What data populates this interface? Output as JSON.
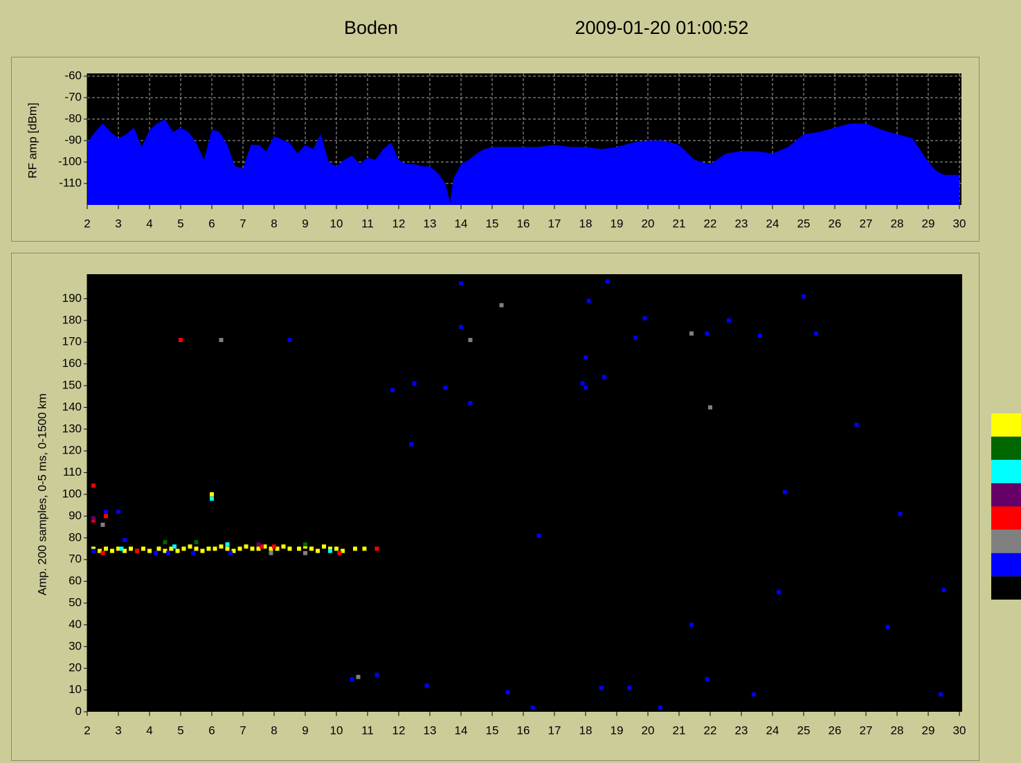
{
  "header": {
    "station": "Boden",
    "timestamp": "2009-01-20  01:00:52"
  },
  "chart_data": [
    {
      "type": "area",
      "ylabel": "RF amp [dBm]",
      "xlim": [
        2,
        30
      ],
      "ylim": [
        -120,
        -60
      ],
      "xticks": [
        2,
        3,
        4,
        5,
        6,
        7,
        8,
        9,
        10,
        11,
        12,
        13,
        14,
        15,
        16,
        17,
        18,
        19,
        20,
        21,
        22,
        23,
        24,
        25,
        26,
        27,
        28,
        29,
        30
      ],
      "yticks": [
        -60,
        -70,
        -80,
        -90,
        -100,
        -110
      ],
      "grid": true,
      "series": [
        {
          "color": "#0000ff",
          "x": [
            2,
            2.25,
            2.5,
            2.75,
            3,
            3.25,
            3.5,
            3.75,
            4,
            4.25,
            4.5,
            4.75,
            5,
            5.25,
            5.5,
            5.75,
            6,
            6.25,
            6.5,
            6.75,
            7,
            7.25,
            7.5,
            7.75,
            8,
            8.5,
            8.75,
            9,
            9.25,
            9.5,
            9.75,
            10,
            10.25,
            10.5,
            10.75,
            11,
            11.25,
            11.5,
            11.75,
            12,
            12.25,
            12.5,
            12.75,
            13,
            13.25,
            13.5,
            13.65,
            13.75,
            14,
            14.25,
            14.5,
            14.75,
            15,
            15.5,
            16,
            16.5,
            17,
            17.5,
            18,
            18.5,
            19,
            19.5,
            20,
            20.5,
            21,
            21.5,
            22,
            22.5,
            23,
            23.5,
            24,
            24.5,
            25,
            25.5,
            26,
            26.5,
            27,
            27.5,
            28,
            28.5,
            29,
            29.25,
            29.5,
            30
          ],
          "values": [
            -91,
            -86,
            -82,
            -86,
            -89,
            -87,
            -84,
            -93,
            -85,
            -82,
            -80,
            -86,
            -84,
            -86,
            -91,
            -99,
            -85,
            -86,
            -92,
            -102,
            -103,
            -92,
            -92,
            -95,
            -88,
            -91,
            -96,
            -92,
            -94,
            -87,
            -100,
            -102,
            -99,
            -97,
            -101,
            -98,
            -99,
            -94,
            -91,
            -99,
            -101,
            -101,
            -102,
            -102,
            -105,
            -110,
            -119,
            -108,
            -101,
            -99,
            -96,
            -94,
            -93,
            -93,
            -93,
            -93,
            -92,
            -93,
            -93,
            -94,
            -93,
            -91,
            -90,
            -90,
            -92,
            -99,
            -101,
            -96,
            -95,
            -95,
            -96,
            -93,
            -87,
            -86,
            -84,
            -82,
            -82,
            -85,
            -87,
            -89,
            -100,
            -104,
            -106,
            -106
          ]
        }
      ]
    },
    {
      "type": "scatter",
      "ylabel": "Amp. 200 samples, 0-5 ms, 0-1500 km",
      "xlim": [
        2,
        30
      ],
      "ylim": [
        0,
        200
      ],
      "xticks": [
        2,
        3,
        4,
        5,
        6,
        7,
        8,
        9,
        10,
        11,
        12,
        13,
        14,
        15,
        16,
        17,
        18,
        19,
        20,
        21,
        22,
        23,
        24,
        25,
        26,
        27,
        28,
        29,
        30
      ],
      "yticks": [
        0,
        10,
        20,
        30,
        40,
        50,
        60,
        70,
        80,
        90,
        100,
        110,
        120,
        130,
        140,
        150,
        160,
        170,
        180,
        190
      ],
      "colorbar": [
        "#ffff00",
        "#006600",
        "#00ffff",
        "#660066",
        "#ff0000",
        "#808080",
        "#0000ff",
        "#000000"
      ],
      "series": [
        {
          "color": "#ffff00",
          "x": [
            2.2,
            2.4,
            2.6,
            2.8,
            3,
            3.2,
            3.4,
            3.6,
            3.8,
            4,
            4.3,
            4.5,
            4.7,
            4.9,
            5.1,
            5.3,
            5.5,
            5.7,
            5.9,
            6.1,
            6.3,
            6.5,
            6.7,
            6.9,
            7.1,
            7.3,
            7.5,
            7.7,
            7.9,
            8.1,
            8.3,
            8.5,
            8.8,
            9,
            9.2,
            9.4,
            9.6,
            9.8,
            10,
            10.2,
            10.6,
            10.9,
            6
          ],
          "values": [
            75,
            74,
            75,
            74,
            75,
            74,
            75,
            74,
            75,
            74,
            75,
            74,
            75,
            74,
            75,
            76,
            75,
            74,
            75,
            75,
            76,
            75,
            74,
            75,
            76,
            75,
            75,
            76,
            75,
            75,
            76,
            75,
            75,
            76,
            75,
            74,
            76,
            75,
            75,
            74,
            75,
            75,
            100
          ]
        },
        {
          "color": "#0000ff",
          "x": [
            2.2,
            2.6,
            3,
            3.2,
            4.2,
            4.6,
            5.4,
            6.6,
            8.5,
            10.5,
            11.3,
            11.3,
            11.8,
            12.4,
            12.5,
            12.9,
            13.5,
            14,
            14,
            14.3,
            15.5,
            16.3,
            16.5,
            17.9,
            18,
            18,
            18.1,
            18.5,
            18.6,
            18.7,
            19.4,
            19.6,
            19.9,
            20.4,
            21.4,
            21.9,
            21.9,
            22.6,
            23.4,
            23.6,
            24.2,
            24.4,
            25,
            25.4,
            26.7,
            27.7,
            28.1,
            29.4,
            29.5
          ],
          "values": [
            74,
            92,
            92,
            79,
            73,
            73,
            73,
            73,
            171,
            15,
            17,
            75,
            148,
            123,
            151,
            12,
            149,
            197,
            177,
            142,
            9,
            2,
            81,
            151,
            149,
            163,
            189,
            11,
            154,
            198,
            11,
            172,
            181,
            2,
            40,
            174,
            15,
            180,
            8,
            173,
            55,
            101,
            191,
            174,
            132,
            39,
            91,
            8,
            56
          ]
        },
        {
          "color": "#ff0000",
          "x": [
            2.2,
            2.2,
            2.6,
            2.5,
            3.6,
            5,
            7.6,
            8,
            10.1,
            11.3
          ],
          "values": [
            104,
            88,
            90,
            73,
            74,
            171,
            76,
            76,
            73,
            75
          ]
        },
        {
          "color": "#808080",
          "x": [
            2.5,
            6.3,
            10.7,
            14.3,
            15.3,
            21.4,
            22,
            7.9,
            9
          ],
          "values": [
            86,
            171,
            16,
            171,
            187,
            174,
            140,
            73,
            73
          ]
        },
        {
          "color": "#00ffff",
          "x": [
            6,
            6.5,
            4.8,
            9.8,
            3.1
          ],
          "values": [
            98,
            77,
            76,
            74,
            75
          ]
        },
        {
          "color": "#006600",
          "x": [
            4.5,
            5.5,
            9
          ],
          "values": [
            78,
            78,
            77
          ]
        },
        {
          "color": "#660066",
          "x": [
            2.2,
            7.5
          ],
          "values": [
            89,
            77
          ]
        }
      ]
    }
  ]
}
